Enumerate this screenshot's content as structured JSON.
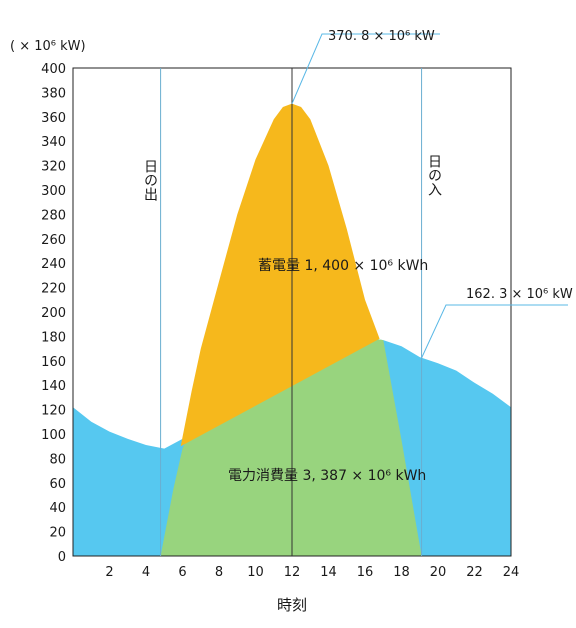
{
  "chart_data": {
    "type": "area",
    "ylabel": "( × 10⁶ kW)",
    "xlabel": "時刻",
    "xlim": [
      0,
      24
    ],
    "ylim": [
      0,
      400
    ],
    "x_ticks": [
      2,
      4,
      6,
      8,
      10,
      12,
      14,
      16,
      18,
      20,
      22,
      24
    ],
    "y_ticks": [
      0,
      20,
      40,
      60,
      80,
      100,
      120,
      140,
      160,
      180,
      200,
      220,
      240,
      260,
      280,
      300,
      320,
      340,
      360,
      380,
      400
    ],
    "grid": false,
    "colors": {
      "consumption": "#56c8f0",
      "solar_used": "#98d47e",
      "storage": "#f6b81c",
      "vline": "#6aaed0",
      "callout": "#5ab8e6"
    },
    "series": [
      {
        "x": [
          0,
          1,
          2,
          3,
          4,
          5,
          6,
          7,
          8,
          9,
          10,
          11,
          12,
          13,
          14,
          15,
          16,
          17,
          18,
          19,
          20,
          21,
          22,
          23,
          24
        ],
        "values": [
          122,
          110,
          102,
          96,
          91,
          88,
          96,
          120,
          145,
          163,
          175,
          179,
          178,
          176,
          180,
          180,
          179,
          177,
          172,
          163,
          158,
          152,
          142,
          133,
          122
        ]
      },
      {
        "x": [
          4.8,
          5.5,
          6,
          7,
          8,
          9,
          10,
          11,
          12,
          13,
          14,
          15,
          16,
          17,
          18,
          19.1
        ],
        "values": [
          0,
          55,
          88,
          120,
          145,
          163,
          175,
          179,
          178,
          176,
          180,
          180,
          179,
          177,
          95,
          0
        ]
      },
      {
        "x": [
          5.9,
          6.5,
          7,
          8,
          9,
          10,
          11,
          11.5,
          12,
          12.5,
          13,
          14,
          15,
          16,
          16.8
        ],
        "values": [
          90,
          135,
          170,
          225,
          280,
          325,
          358,
          368,
          370.8,
          368,
          358,
          320,
          268,
          210,
          178
        ]
      }
    ],
    "annotations": {
      "sunrise": "日の出",
      "sunset": "日の入",
      "peak": "370. 8 × 10⁶ kW",
      "sunset_value": "162. 3 × 10⁶ kW",
      "storage": "蓄電量 1, 400 × 10⁶ kWh",
      "consumption": "電力消費量 3, 387 × 10⁶ kWh"
    }
  }
}
